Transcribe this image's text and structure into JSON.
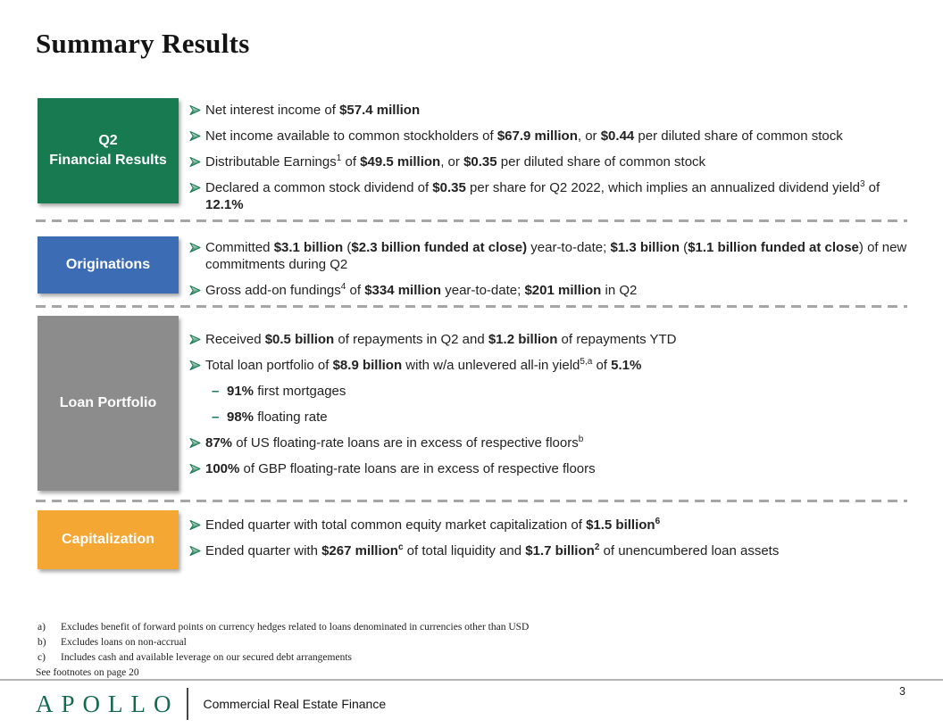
{
  "page": {
    "title": "Summary Results",
    "page_number": "3"
  },
  "colors": {
    "green_box": "#177A50",
    "blue_box": "#3C6CB4",
    "gray_box": "#8C8C8C",
    "orange_box": "#F5A733",
    "bullet_arrow_green": "#157A4F",
    "logo_green": "#15694E"
  },
  "sections": [
    {
      "id": "q2-financial-results",
      "label": "Q2\nFinancial Results",
      "color": "#177A50",
      "bullets": [
        {
          "level": 1,
          "segments": [
            {
              "t": "Net interest income of "
            },
            {
              "t": "$57.4 million",
              "b": true
            }
          ]
        },
        {
          "level": 1,
          "segments": [
            {
              "t": "Net income available to common stockholders of "
            },
            {
              "t": "$67.9 million",
              "b": true
            },
            {
              "t": ", or "
            },
            {
              "t": "$0.44",
              "b": true
            },
            {
              "t": " per diluted share of common stock"
            }
          ]
        },
        {
          "level": 1,
          "segments": [
            {
              "t": "Distributable Earnings"
            },
            {
              "t": "1",
              "sup": true
            },
            {
              "t": " of "
            },
            {
              "t": "$49.5 million",
              "b": true
            },
            {
              "t": ", or "
            },
            {
              "t": "$0.35",
              "b": true
            },
            {
              "t": " per diluted share of common stock"
            }
          ]
        },
        {
          "level": 1,
          "segments": [
            {
              "t": "Declared a common stock dividend of "
            },
            {
              "t": "$0.35",
              "b": true
            },
            {
              "t": " per share for Q2 2022, which implies an annualized dividend yield"
            },
            {
              "t": "3",
              "sup": true
            },
            {
              "t": " of "
            },
            {
              "t": "12.1%",
              "b": true
            }
          ]
        }
      ]
    },
    {
      "id": "originations",
      "label": "Originations",
      "color": "#3C6CB4",
      "bullets": [
        {
          "level": 1,
          "segments": [
            {
              "t": "Committed "
            },
            {
              "t": "$3.1 billion",
              "b": true
            },
            {
              "t": " ("
            },
            {
              "t": "$2.3 billion funded at close)",
              "b": true
            },
            {
              "t": " year-to-date; "
            },
            {
              "t": "$1.3 billion",
              "b": true
            },
            {
              "t": " ("
            },
            {
              "t": "$1.1 billion funded at close",
              "b": true
            },
            {
              "t": ") of new commitments during Q2"
            }
          ]
        },
        {
          "level": 1,
          "segments": [
            {
              "t": "Gross add-on fundings"
            },
            {
              "t": "4",
              "sup": true
            },
            {
              "t": " of "
            },
            {
              "t": "$334 million",
              "b": true
            },
            {
              "t": " year-to-date; "
            },
            {
              "t": "$201 million",
              "b": true
            },
            {
              "t": " in Q2"
            }
          ]
        }
      ]
    },
    {
      "id": "loan-portfolio",
      "label": "Loan Portfolio",
      "color": "#8C8C8C",
      "bullets": [
        {
          "level": 1,
          "segments": [
            {
              "t": "Received "
            },
            {
              "t": "$0.5 billion",
              "b": true
            },
            {
              "t": " of repayments in Q2 and "
            },
            {
              "t": "$1.2 billion",
              "b": true
            },
            {
              "t": " of repayments YTD"
            }
          ]
        },
        {
          "level": 1,
          "segments": [
            {
              "t": "Total loan portfolio of "
            },
            {
              "t": "$8.9 billion",
              "b": true
            },
            {
              "t": " with w/a unlevered all-in yield"
            },
            {
              "t": "5,a",
              "sup": true
            },
            {
              "t": " of "
            },
            {
              "t": "5.1%",
              "b": true
            }
          ]
        },
        {
          "level": 2,
          "segments": [
            {
              "t": "91%",
              "b": true
            },
            {
              "t": " first mortgages"
            }
          ]
        },
        {
          "level": 2,
          "segments": [
            {
              "t": "98%",
              "b": true
            },
            {
              "t": " floating rate"
            }
          ]
        },
        {
          "level": 1,
          "segments": [
            {
              "t": "87%",
              "b": true
            },
            {
              "t": " of US floating-rate loans are in excess of respective floors"
            },
            {
              "t": "b",
              "sup": true
            }
          ]
        },
        {
          "level": 1,
          "segments": [
            {
              "t": "100%",
              "b": true
            },
            {
              "t": " of GBP floating-rate loans are in excess of respective floors"
            }
          ]
        }
      ]
    },
    {
      "id": "capitalization",
      "label": "Capitalization",
      "color": "#F5A733",
      "bullets": [
        {
          "level": 1,
          "segments": [
            {
              "t": "Ended quarter with total common equity market capitalization of "
            },
            {
              "t": "$1.5 billion",
              "b": true
            },
            {
              "t": "6",
              "sup": true,
              "b": true
            }
          ]
        },
        {
          "level": 1,
          "segments": [
            {
              "t": "Ended quarter with "
            },
            {
              "t": "$267 million",
              "b": true
            },
            {
              "t": "c",
              "sup": true,
              "b": true
            },
            {
              "t": " of total liquidity and "
            },
            {
              "t": "$1.7 billion",
              "b": true
            },
            {
              "t": "2",
              "sup": true,
              "b": true
            },
            {
              "t": " of unencumbered loan assets"
            }
          ]
        }
      ]
    }
  ],
  "footnotes": {
    "items": [
      {
        "label": "a)",
        "text": "Excludes benefit of forward points on currency hedges related to loans denominated in currencies other than USD"
      },
      {
        "label": "b)",
        "text": "Excludes loans on non-accrual"
      },
      {
        "label": "c)",
        "text": "Includes cash and available leverage on our secured debt arrangements"
      }
    ],
    "see_note": "See footnotes on page 20"
  },
  "footer": {
    "logo": "APOLLO",
    "tagline": "Commercial Real Estate Finance"
  }
}
